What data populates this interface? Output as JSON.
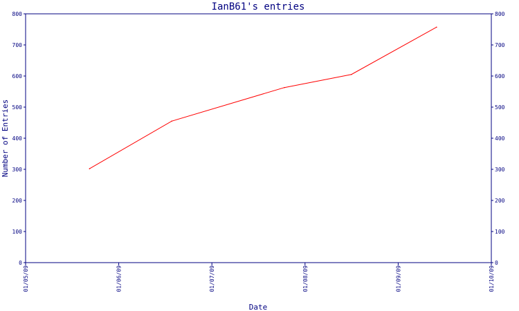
{
  "chart_data": {
    "type": "line",
    "title": "IanB61's entries",
    "xlabel": "Date",
    "ylabel": "Number of Entries",
    "x_ticks": [
      "01/05/09",
      "01/06/09",
      "01/07/09",
      "01/08/09",
      "01/09/09",
      "01/10/09"
    ],
    "y_ticks": [
      "0",
      "100",
      "200",
      "300",
      "400",
      "500",
      "600",
      "700",
      "800"
    ],
    "ylim": [
      0,
      800
    ],
    "xlim": [
      "2009-05-01",
      "2009-10-01"
    ],
    "grid": false,
    "series": [
      {
        "x": [
          "2009-05-22",
          "2009-06-18",
          "2009-07-25",
          "2009-08-16",
          "2009-09-13"
        ],
        "y": [
          302,
          455,
          563,
          605,
          757
        ]
      }
    ],
    "colors": {
      "axis": "#000080",
      "line": "#ff0000",
      "background": "#ffffff"
    }
  }
}
